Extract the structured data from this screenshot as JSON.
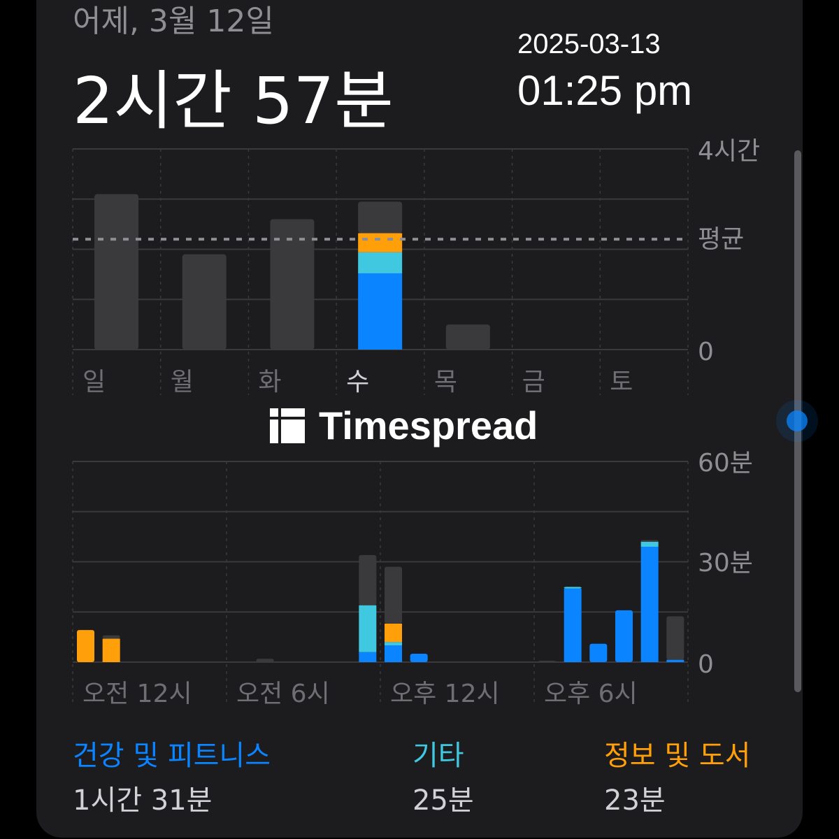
{
  "header": {
    "subtitle": "어제, 3월 12일",
    "total": "2시간 57분"
  },
  "overlay": {
    "date": "2025-03-13",
    "time": "01:25 pm"
  },
  "colors": {
    "health": "#0a84ff",
    "other": "#40c8e0",
    "info": "#ff9f0a",
    "rest": "#3a3a3c"
  },
  "chart_data": [
    {
      "type": "bar",
      "stacked": true,
      "categories": [
        "일",
        "월",
        "화",
        "수",
        "목",
        "금",
        "토"
      ],
      "selected": "수",
      "ylim": [
        0,
        4
      ],
      "y_unit": "hours",
      "y_ticks": [
        "4시간",
        "평균",
        "0"
      ],
      "average": 2.2,
      "series": [
        {
          "key": "health",
          "values": [
            0,
            0,
            0,
            1.52,
            0,
            0,
            0
          ]
        },
        {
          "key": "other",
          "values": [
            0,
            0,
            0,
            0.42,
            0,
            0,
            0
          ]
        },
        {
          "key": "info",
          "values": [
            0,
            0,
            0,
            0.38,
            0,
            0,
            0
          ]
        },
        {
          "key": "rest",
          "values": [
            3.1,
            1.9,
            2.6,
            0.63,
            0.5,
            0,
            0
          ]
        }
      ]
    },
    {
      "type": "bar",
      "stacked": true,
      "x_unit": "hour",
      "ylim": [
        0,
        60
      ],
      "y_unit": "minutes",
      "y_ticks": [
        "60분",
        "30분",
        "0"
      ],
      "x_labels": [
        "오전 12시",
        "오전 6시",
        "오후 12시",
        "오후 6시"
      ],
      "series": [
        {
          "key": "health",
          "values": [
            0,
            0,
            0,
            0,
            0,
            0,
            0,
            0,
            0,
            0,
            0,
            3,
            5,
            2.5,
            0,
            0,
            0,
            0,
            0,
            22,
            5.5,
            15.5,
            34.5,
            0.7
          ]
        },
        {
          "key": "other",
          "values": [
            0,
            0,
            0,
            0,
            0,
            0,
            0,
            0,
            0,
            0,
            0,
            14,
            1,
            0,
            0,
            0,
            0,
            0,
            0,
            0.5,
            0,
            0,
            1.5,
            0
          ]
        },
        {
          "key": "info",
          "values": [
            9.6,
            7,
            0,
            0,
            0,
            0,
            0,
            0,
            0,
            0,
            0,
            0,
            5.5,
            0,
            0,
            0,
            0,
            0,
            0,
            0,
            0,
            0,
            0,
            0
          ]
        },
        {
          "key": "rest",
          "values": [
            0,
            1,
            0,
            0,
            0,
            0,
            0,
            1,
            0,
            0,
            0,
            15,
            17,
            0,
            0,
            0,
            0,
            0,
            0.3,
            0,
            0,
            0,
            0.5,
            13
          ]
        }
      ]
    }
  ],
  "categories": [
    {
      "name": "건강 및 피트니스",
      "time": "1시간 31분",
      "color": "#0a84ff"
    },
    {
      "name": "기타",
      "time": "25분",
      "color": "#40c8e0"
    },
    {
      "name": "정보 및 도서",
      "time": "23분",
      "color": "#ff9f0a"
    }
  ],
  "watermark": "Timespread"
}
